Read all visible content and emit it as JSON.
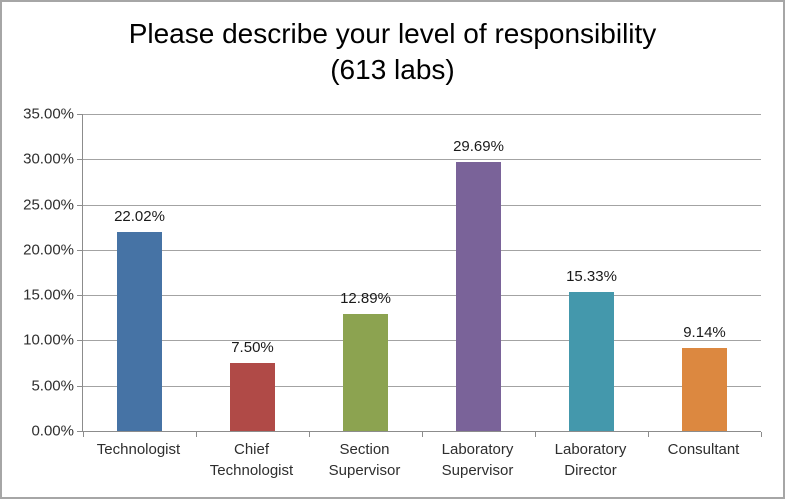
{
  "chart_data": {
    "type": "bar",
    "title": "Please describe your level of responsibility",
    "subtitle": "(613 labs)",
    "categories": [
      "Technologist",
      "Chief Technologist",
      "Section Supervisor",
      "Laboratory Supervisor",
      "Laboratory Director",
      "Consultant"
    ],
    "values": [
      22.02,
      7.5,
      12.89,
      29.69,
      15.33,
      9.14
    ],
    "value_labels": [
      "22.02%",
      "7.50%",
      "12.89%",
      "29.69%",
      "15.33%",
      "9.14%"
    ],
    "bar_colors": [
      "#4673A5",
      "#B04A47",
      "#8CA350",
      "#7A6399",
      "#4498AC",
      "#DC8840"
    ],
    "y_ticks": [
      "0.00%",
      "5.00%",
      "10.00%",
      "15.00%",
      "20.00%",
      "25.00%",
      "30.00%",
      "35.00%"
    ],
    "y_tick_values": [
      0,
      5,
      10,
      15,
      20,
      25,
      30,
      35
    ],
    "ylim": [
      0,
      35
    ],
    "xlabel": "",
    "ylabel": "",
    "grid": true,
    "legend": false
  },
  "colors": {
    "gridline": "#a3a3a3",
    "axis": "#8c8c8c",
    "frame_border": "#a6a6a6",
    "title_text": "#000000",
    "label_text": "#2e2e2e"
  }
}
